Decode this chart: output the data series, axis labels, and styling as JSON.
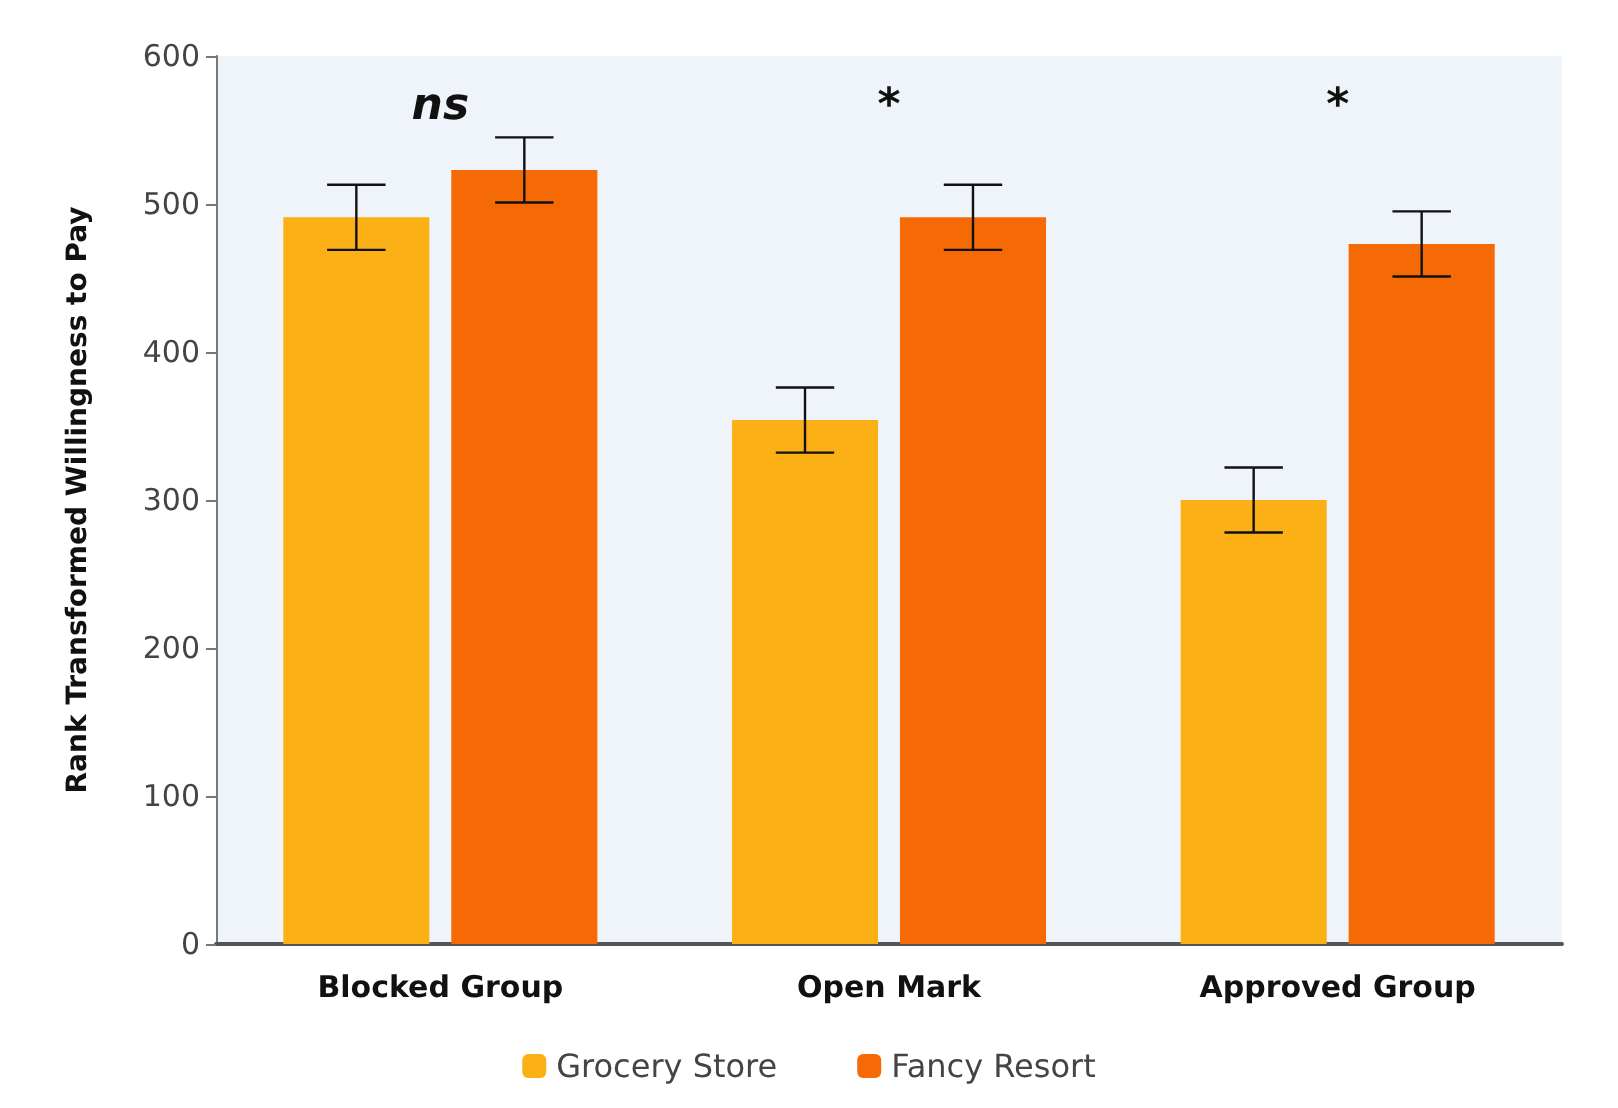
{
  "chart_data": {
    "type": "bar",
    "ylabel": "Rank Transformed Willingness to Pay",
    "categories": [
      "Blocked Group",
      "Open Mark",
      "Approved Group"
    ],
    "series": [
      {
        "name": "Grocery Store",
        "color": "#fbb116",
        "values": [
          491,
          354,
          300
        ],
        "errors": [
          22,
          22,
          22
        ]
      },
      {
        "name": "Fancy Resort",
        "color": "#f56a04",
        "values": [
          523,
          491,
          473
        ],
        "errors": [
          22,
          22,
          22
        ]
      }
    ],
    "ylim": [
      0,
      600
    ],
    "yticks": [
      0,
      100,
      200,
      300,
      400,
      500,
      600
    ],
    "grid": false,
    "legend": "bottom",
    "annotations": [
      "ns",
      "*",
      "*"
    ]
  }
}
